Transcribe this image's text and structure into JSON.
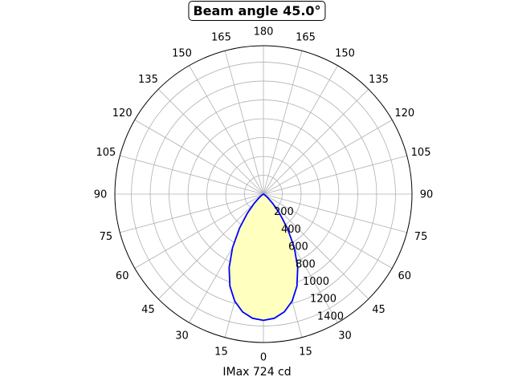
{
  "chart_data": {
    "type": "polar",
    "title": "Beam angle 45.0°",
    "xlabel": "IMax 724 cd",
    "angle_tick_labels": [
      {
        "angle": 0,
        "label": "0"
      },
      {
        "angle": 15,
        "label": "15"
      },
      {
        "angle": 30,
        "label": "30"
      },
      {
        "angle": 45,
        "label": "45"
      },
      {
        "angle": 60,
        "label": "60"
      },
      {
        "angle": 75,
        "label": "75"
      },
      {
        "angle": 90,
        "label": "90"
      },
      {
        "angle": 105,
        "label": "105"
      },
      {
        "angle": 120,
        "label": "120"
      },
      {
        "angle": 135,
        "label": "135"
      },
      {
        "angle": 150,
        "label": "150"
      },
      {
        "angle": 165,
        "label": "165"
      },
      {
        "angle": 180,
        "label": "180"
      },
      {
        "angle": 195,
        "label": "165"
      },
      {
        "angle": 210,
        "label": "150"
      },
      {
        "angle": 225,
        "label": "135"
      },
      {
        "angle": 240,
        "label": "120"
      },
      {
        "angle": 255,
        "label": "105"
      },
      {
        "angle": 270,
        "label": "90"
      },
      {
        "angle": 285,
        "label": "75"
      },
      {
        "angle": 300,
        "label": "60"
      },
      {
        "angle": 315,
        "label": "45"
      },
      {
        "angle": 330,
        "label": "30"
      },
      {
        "angle": 345,
        "label": "15"
      }
    ],
    "radial_ticks": [
      200,
      400,
      600,
      800,
      1000,
      1200,
      1400
    ],
    "rlim": [
      0,
      1575
    ],
    "grid": true,
    "curve_color": "#0000ff",
    "fill_color": "#ffffc0",
    "series": [
      {
        "angles_deg": [
          0,
          5,
          10,
          15,
          20,
          25,
          30,
          35,
          40,
          45,
          50,
          55,
          60,
          65,
          70,
          75,
          80,
          85,
          90
        ],
        "values": [
          1340,
          1323,
          1270,
          1176,
          1039,
          860,
          654,
          443,
          266,
          137,
          61,
          23,
          6,
          1,
          0,
          0,
          0,
          0,
          0
        ]
      }
    ]
  }
}
